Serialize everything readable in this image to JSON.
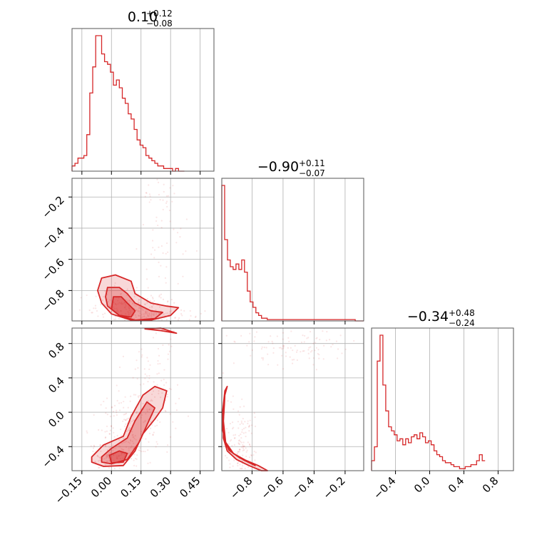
{
  "colors": {
    "accent": "#d62728",
    "grid": "#b0b0b0",
    "frame": "#555555"
  },
  "chart_data": {
    "type": "corner",
    "parameters": [
      {
        "index": 0,
        "range": [
          -0.2,
          0.52
        ],
        "ticks": [
          "−0.15",
          "0.00",
          "0.15",
          "0.30",
          "0.45"
        ],
        "tick_values": [
          -0.15,
          0.0,
          0.15,
          0.3,
          0.45
        ],
        "title": {
          "median": "0.10",
          "plus": "+0.12",
          "minus": "−0.08"
        }
      },
      {
        "index": 1,
        "range": [
          -0.995,
          -0.08
        ],
        "ticks": [
          "−0.8",
          "−0.6",
          "−0.4",
          "−0.2"
        ],
        "tick_values": [
          -0.8,
          -0.6,
          -0.4,
          -0.2
        ],
        "title": {
          "median": "−0.90",
          "plus": "+0.11",
          "minus": "−0.07"
        }
      },
      {
        "index": 2,
        "range": [
          -0.68,
          0.98
        ],
        "ticks": [
          "−0.4",
          "0.0",
          "0.4",
          "0.8"
        ],
        "tick_values": [
          -0.4,
          0.0,
          0.4,
          0.8
        ],
        "title": {
          "median": "−0.34",
          "plus": "+0.48",
          "minus": "−0.24"
        }
      }
    ],
    "histograms": [
      {
        "param": 0,
        "bin_edges_start": -0.2,
        "bin_width": 0.015,
        "counts": [
          2,
          3,
          5,
          5,
          6,
          14,
          30,
          40,
          52,
          52,
          45,
          42,
          41,
          38,
          33,
          35,
          32,
          28,
          26,
          22,
          20,
          16,
          12,
          10,
          9,
          6,
          5,
          4,
          3,
          2,
          2,
          1,
          1,
          1,
          0,
          1,
          0,
          0
        ]
      },
      {
        "param": 1,
        "bin_edges_start": -0.995,
        "bin_width": 0.0183,
        "counts": [
          100,
          60,
          45,
          40,
          38,
          42,
          38,
          45,
          36,
          22,
          14,
          10,
          6,
          4,
          2,
          2,
          1,
          1,
          1,
          1,
          1,
          1,
          1,
          1,
          1,
          1,
          1,
          1,
          1,
          1,
          1,
          1,
          1,
          1,
          1,
          1,
          1,
          1,
          1,
          1,
          1,
          1,
          1,
          1,
          1,
          1,
          1,
          0,
          0,
          0
        ]
      },
      {
        "param": 2,
        "bin_edges_start": -0.68,
        "bin_width": 0.0332,
        "counts": [
          5,
          12,
          55,
          68,
          43,
          30,
          22,
          20,
          18,
          15,
          16,
          13,
          16,
          14,
          17,
          18,
          16,
          19,
          17,
          14,
          15,
          13,
          10,
          8,
          7,
          5,
          4,
          4,
          3,
          2,
          2,
          1,
          1,
          2,
          2,
          3,
          3,
          5,
          8,
          5
        ]
      }
    ],
    "scatter_panels": [
      {
        "x_param": 0,
        "y_param": 1,
        "clouds": [
          {
            "cx": 0.07,
            "cy": -0.9,
            "sx": 0.08,
            "sy": 0.05,
            "n": 160,
            "seed": 11
          },
          {
            "cx": 0.25,
            "cy": -0.4,
            "sx": 0.06,
            "sy": 0.3,
            "n": 90,
            "seed": 12
          },
          {
            "cx": 0.2,
            "cy": -0.96,
            "sx": 0.12,
            "sy": 0.03,
            "n": 120,
            "seed": 13
          }
        ],
        "contours": [
          {
            "level": 1,
            "points": [
              [
                -0.05,
                -0.72
              ],
              [
                0.02,
                -0.7
              ],
              [
                0.1,
                -0.74
              ],
              [
                0.12,
                -0.82
              ],
              [
                0.2,
                -0.88
              ],
              [
                0.28,
                -0.9
              ],
              [
                0.34,
                -0.91
              ],
              [
                0.3,
                -0.96
              ],
              [
                0.2,
                -0.99
              ],
              [
                0.1,
                -0.99
              ],
              [
                0.0,
                -0.95
              ],
              [
                -0.05,
                -0.88
              ],
              [
                -0.07,
                -0.8
              ]
            ]
          },
          {
            "level": 2,
            "points": [
              [
                -0.02,
                -0.78
              ],
              [
                0.04,
                -0.78
              ],
              [
                0.08,
                -0.82
              ],
              [
                0.12,
                -0.88
              ],
              [
                0.2,
                -0.93
              ],
              [
                0.26,
                -0.94
              ],
              [
                0.22,
                -0.98
              ],
              [
                0.12,
                -0.99
              ],
              [
                0.04,
                -0.96
              ],
              [
                -0.02,
                -0.9
              ],
              [
                -0.03,
                -0.84
              ]
            ]
          },
          {
            "level": 3,
            "points": [
              [
                0.01,
                -0.84
              ],
              [
                0.05,
                -0.84
              ],
              [
                0.08,
                -0.88
              ],
              [
                0.12,
                -0.93
              ],
              [
                0.1,
                -0.97
              ],
              [
                0.04,
                -0.96
              ],
              [
                0.0,
                -0.92
              ]
            ]
          }
        ]
      },
      {
        "x_param": 0,
        "y_param": 2,
        "clouds": [
          {
            "cx": 0.1,
            "cy": -0.2,
            "sx": 0.09,
            "sy": 0.22,
            "n": 200,
            "seed": 21
          },
          {
            "cx": 0.22,
            "cy": 0.4,
            "sx": 0.06,
            "sy": 0.3,
            "n": 80,
            "seed": 22
          },
          {
            "cx": 0.0,
            "cy": -0.5,
            "sx": 0.06,
            "sy": 0.08,
            "n": 120,
            "seed": 23
          }
        ],
        "contours": [
          {
            "level": 1,
            "points": [
              [
                -0.1,
                -0.52
              ],
              [
                -0.04,
                -0.38
              ],
              [
                0.06,
                -0.28
              ],
              [
                0.1,
                -0.05
              ],
              [
                0.16,
                0.2
              ],
              [
                0.22,
                0.3
              ],
              [
                0.28,
                0.25
              ],
              [
                0.26,
                0.05
              ],
              [
                0.22,
                -0.08
              ],
              [
                0.16,
                -0.25
              ],
              [
                0.12,
                -0.45
              ],
              [
                0.06,
                -0.62
              ],
              [
                -0.04,
                -0.63
              ],
              [
                -0.1,
                -0.58
              ]
            ]
          },
          {
            "level": 2,
            "points": [
              [
                -0.05,
                -0.52
              ],
              [
                0.0,
                -0.42
              ],
              [
                0.08,
                -0.3
              ],
              [
                0.12,
                -0.1
              ],
              [
                0.18,
                0.12
              ],
              [
                0.22,
                0.05
              ],
              [
                0.18,
                -0.15
              ],
              [
                0.14,
                -0.35
              ],
              [
                0.08,
                -0.55
              ],
              [
                0.0,
                -0.6
              ],
              [
                -0.05,
                -0.58
              ]
            ]
          },
          {
            "level": 3,
            "points": [
              [
                -0.01,
                -0.5
              ],
              [
                0.04,
                -0.45
              ],
              [
                0.08,
                -0.48
              ],
              [
                0.06,
                -0.58
              ],
              [
                0.0,
                -0.59
              ]
            ]
          },
          {
            "level": 1,
            "points": [
              [
                0.17,
                0.97
              ],
              [
                0.25,
                0.95
              ],
              [
                0.33,
                0.92
              ],
              [
                0.25,
                0.98
              ]
            ]
          }
        ]
      },
      {
        "x_param": 1,
        "y_param": 2,
        "clouds": [
          {
            "cx": -0.88,
            "cy": -0.4,
            "sx": 0.06,
            "sy": 0.22,
            "n": 150,
            "seed": 31
          },
          {
            "cx": -0.55,
            "cy": 0.75,
            "sx": 0.2,
            "sy": 0.12,
            "n": 110,
            "seed": 32
          }
        ],
        "contours": [
          {
            "level": 1,
            "points": [
              [
                -0.975,
                0.2
              ],
              [
                -0.96,
                0.3
              ],
              [
                -0.975,
                0.25
              ],
              [
                -0.99,
                0.0
              ],
              [
                -0.99,
                -0.2
              ],
              [
                -0.97,
                -0.38
              ],
              [
                -0.92,
                -0.48
              ],
              [
                -0.84,
                -0.56
              ],
              [
                -0.76,
                -0.62
              ],
              [
                -0.7,
                -0.68
              ],
              [
                -0.74,
                -0.68
              ],
              [
                -0.82,
                -0.62
              ],
              [
                -0.9,
                -0.55
              ],
              [
                -0.96,
                -0.45
              ],
              [
                -0.985,
                -0.3
              ],
              [
                -0.985,
                -0.1
              ],
              [
                -0.978,
                0.1
              ]
            ]
          },
          {
            "level": 2,
            "points": [
              [
                -0.98,
                0.1
              ],
              [
                -0.985,
                -0.1
              ],
              [
                -0.97,
                -0.35
              ],
              [
                -0.92,
                -0.48
              ],
              [
                -0.85,
                -0.56
              ],
              [
                -0.78,
                -0.62
              ],
              [
                -0.8,
                -0.6
              ],
              [
                -0.88,
                -0.53
              ],
              [
                -0.95,
                -0.44
              ],
              [
                -0.98,
                -0.3
              ],
              [
                -0.985,
                -0.1
              ]
            ]
          }
        ]
      }
    ]
  }
}
